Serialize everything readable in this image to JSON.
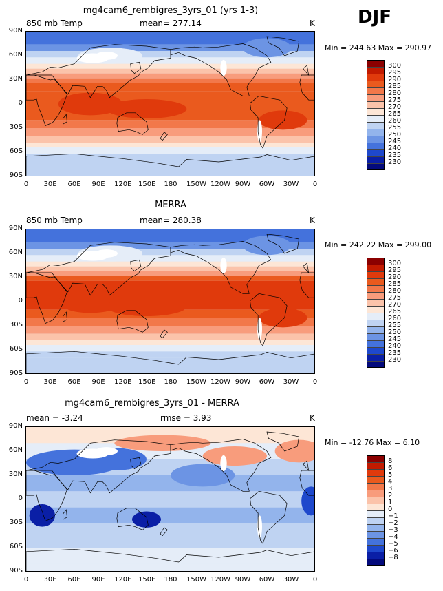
{
  "season": "DJF",
  "units": "K",
  "lat_ticks": [
    "90N",
    "60N",
    "30N",
    "0",
    "30S",
    "60S",
    "90S"
  ],
  "lon_ticks": [
    "0",
    "30E",
    "60E",
    "90E",
    "120E",
    "150E",
    "180",
    "150W",
    "120W",
    "90W",
    "60W",
    "30W",
    "0"
  ],
  "chart_data": [
    {
      "type": "heatmap",
      "title": "mg4cam6_rembigres_3yrs_01 (yrs 1-3)",
      "left_label": "850 mb Temp",
      "center_label": "mean= 277.14",
      "right_label": "K",
      "minmax": "Min = 244.63 Max = 290.97",
      "levels": [
        "300",
        "295",
        "290",
        "285",
        "280",
        "275",
        "270",
        "265",
        "260",
        "255",
        "250",
        "245",
        "240",
        "235",
        "230"
      ],
      "colors": [
        "#8b0000",
        "#c21a00",
        "#e03a0c",
        "#ea5a1e",
        "#f2784a",
        "#f89c7c",
        "#fbc3aa",
        "#fde6d6",
        "#e5edf8",
        "#bfd3f2",
        "#93b4ec",
        "#6c94e4",
        "#4472dc",
        "#1e48cc",
        "#0a1fa6",
        "#030a7c"
      ],
      "mean": 277.14,
      "min": 244.63,
      "max": 290.97
    },
    {
      "type": "heatmap",
      "title": "MERRA",
      "left_label": "850 mb Temp",
      "center_label": "mean= 280.38",
      "right_label": "K",
      "minmax": "Min = 242.22 Max = 299.00",
      "levels": [
        "300",
        "295",
        "290",
        "285",
        "280",
        "275",
        "270",
        "265",
        "260",
        "255",
        "250",
        "245",
        "240",
        "235",
        "230"
      ],
      "colors": [
        "#8b0000",
        "#c21a00",
        "#e03a0c",
        "#ea5a1e",
        "#f2784a",
        "#f89c7c",
        "#fbc3aa",
        "#fde6d6",
        "#e5edf8",
        "#bfd3f2",
        "#93b4ec",
        "#6c94e4",
        "#4472dc",
        "#1e48cc",
        "#0a1fa6",
        "#030a7c"
      ],
      "mean": 280.38,
      "min": 242.22,
      "max": 299.0
    },
    {
      "type": "heatmap",
      "title": "mg4cam6_rembigres_3yrs_01 - MERRA",
      "left_label": "mean = -3.24",
      "center_label": "rmse = 3.93",
      "right_label": "K",
      "minmax": "Min = -12.76 Max = 6.10",
      "levels": [
        "8",
        "6",
        "5",
        "4",
        "3",
        "2",
        "1",
        "0",
        "−1",
        "−2",
        "−3",
        "−4",
        "−5",
        "−6",
        "−8"
      ],
      "colors": [
        "#8b0000",
        "#c21a00",
        "#e03a0c",
        "#ea5a1e",
        "#f2784a",
        "#f89c7c",
        "#fbc3aa",
        "#fde6d6",
        "#e5edf8",
        "#bfd3f2",
        "#93b4ec",
        "#6c94e4",
        "#4472dc",
        "#1e48cc",
        "#0a1fa6",
        "#030a7c"
      ],
      "mean": -3.24,
      "rmse": 3.93,
      "min": -12.76,
      "max": 6.1
    }
  ]
}
